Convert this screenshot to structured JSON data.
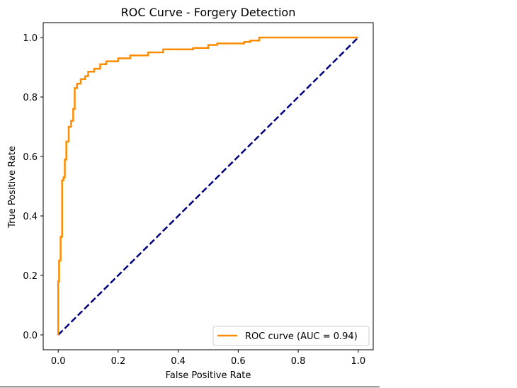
{
  "chart_data": {
    "type": "line",
    "title": "ROC Curve - Forgery Detection",
    "xlabel": "False Positive Rate",
    "ylabel": "True Positive Rate",
    "xlim": [
      -0.05,
      1.05
    ],
    "ylim": [
      -0.05,
      1.05
    ],
    "xticks": [
      0.0,
      0.2,
      0.4,
      0.6,
      0.8,
      1.0
    ],
    "yticks": [
      0.0,
      0.2,
      0.4,
      0.6,
      0.8,
      1.0
    ],
    "xtick_labels": [
      "0.0",
      "0.2",
      "0.4",
      "0.6",
      "0.8",
      "1.0"
    ],
    "ytick_labels": [
      "0.0",
      "0.2",
      "0.4",
      "0.6",
      "0.8",
      "1.0"
    ],
    "grid": false,
    "legend_position": "lower-right",
    "series": [
      {
        "name": "ROC curve (AUC = 0.94)",
        "color": "#ff8c00",
        "style": "solid",
        "x": [
          0.0,
          0.0,
          0.003,
          0.003,
          0.008,
          0.008,
          0.013,
          0.013,
          0.018,
          0.018,
          0.022,
          0.022,
          0.027,
          0.027,
          0.035,
          0.035,
          0.043,
          0.043,
          0.05,
          0.05,
          0.055,
          0.055,
          0.063,
          0.063,
          0.075,
          0.075,
          0.09,
          0.09,
          0.1,
          0.1,
          0.12,
          0.12,
          0.14,
          0.14,
          0.16,
          0.16,
          0.2,
          0.2,
          0.24,
          0.24,
          0.3,
          0.3,
          0.35,
          0.35,
          0.45,
          0.45,
          0.5,
          0.5,
          0.53,
          0.53,
          0.62,
          0.62,
          0.64,
          0.64,
          0.67,
          0.67,
          1.0
        ],
        "y": [
          0.0,
          0.18,
          0.18,
          0.25,
          0.25,
          0.33,
          0.33,
          0.52,
          0.52,
          0.53,
          0.53,
          0.59,
          0.59,
          0.65,
          0.65,
          0.7,
          0.7,
          0.72,
          0.72,
          0.76,
          0.76,
          0.83,
          0.83,
          0.845,
          0.845,
          0.86,
          0.86,
          0.87,
          0.87,
          0.885,
          0.885,
          0.895,
          0.895,
          0.91,
          0.91,
          0.92,
          0.92,
          0.93,
          0.93,
          0.94,
          0.94,
          0.95,
          0.95,
          0.96,
          0.96,
          0.965,
          0.965,
          0.975,
          0.975,
          0.98,
          0.98,
          0.985,
          0.985,
          0.99,
          0.99,
          1.0,
          1.0
        ]
      },
      {
        "name": "",
        "color": "#000080",
        "style": "dashed",
        "x": [
          0.0,
          1.0
        ],
        "y": [
          0.0,
          1.0
        ]
      }
    ]
  }
}
